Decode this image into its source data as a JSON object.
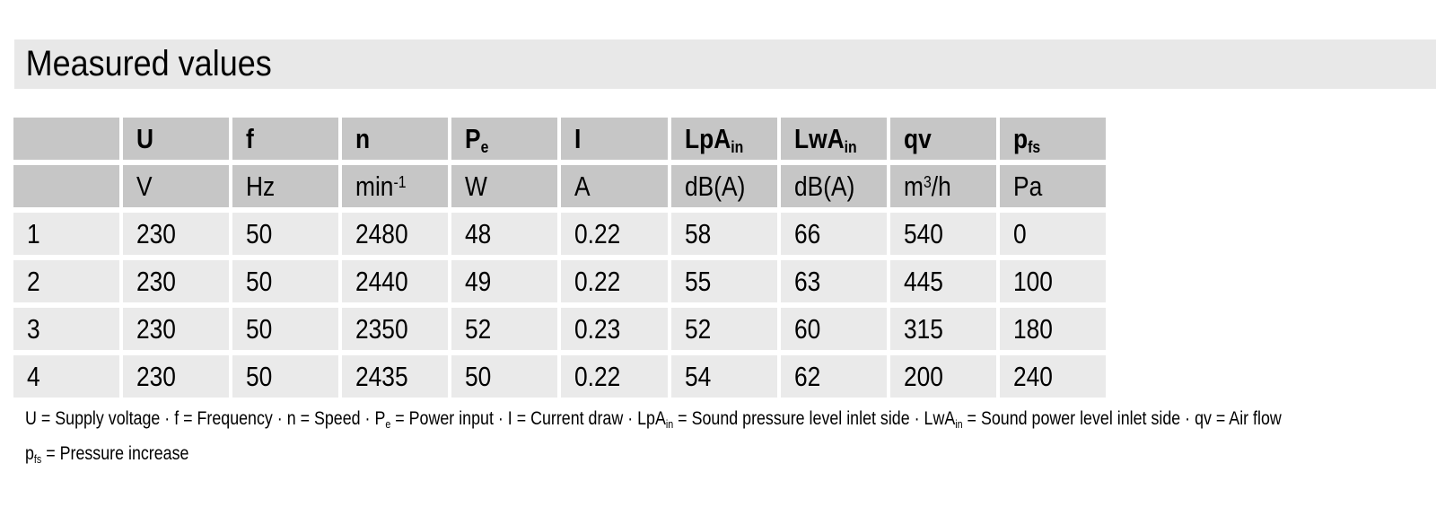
{
  "title": "Measured values",
  "colors": {
    "title_band_bg": "#e8e8e8",
    "header_cell_bg": "#c6c6c6",
    "data_cell_bg": "#eaeaea",
    "text": "#000000",
    "background": "#ffffff"
  },
  "table": {
    "headers": [
      {
        "main": "",
        "sub": ""
      },
      {
        "main": "U",
        "sub": ""
      },
      {
        "main": "f",
        "sub": ""
      },
      {
        "main": "n",
        "sub": ""
      },
      {
        "main": "P",
        "sub": "e"
      },
      {
        "main": "I",
        "sub": ""
      },
      {
        "main": "LpA",
        "sub": "in"
      },
      {
        "main": "LwA",
        "sub": "in"
      },
      {
        "main": "qv",
        "sub": ""
      },
      {
        "main": "p",
        "sub": "fs"
      }
    ],
    "units": [
      {
        "pre": ""
      },
      {
        "pre": "V"
      },
      {
        "pre": "Hz"
      },
      {
        "pre": "min",
        "sup": "-1"
      },
      {
        "pre": "W"
      },
      {
        "pre": "A"
      },
      {
        "pre": "dB(A)"
      },
      {
        "pre": "dB(A)"
      },
      {
        "pre": "m",
        "sup": "3",
        "post": "/h"
      },
      {
        "pre": "Pa"
      }
    ],
    "rows": [
      [
        "1",
        "230",
        "50",
        "2480",
        "48",
        "0.22",
        "58",
        "66",
        "540",
        "0"
      ],
      [
        "2",
        "230",
        "50",
        "2440",
        "49",
        "0.22",
        "55",
        "63",
        "445",
        "100"
      ],
      [
        "3",
        "230",
        "50",
        "2350",
        "52",
        "0.23",
        "52",
        "60",
        "315",
        "180"
      ],
      [
        "4",
        "230",
        "50",
        "2435",
        "50",
        "0.22",
        "54",
        "62",
        "200",
        "240"
      ]
    ]
  },
  "legend": {
    "line1": [
      {
        "t": "U = Supply voltage · f = Frequency · n = Speed · P",
        "s": "e"
      },
      {
        "t": " = Power input · I = Current draw · LpA",
        "s": "in"
      },
      {
        "t": " = Sound pressure level inlet side · LwA",
        "s": "in"
      },
      {
        "t": " = Sound power level inlet side · qv = Air flow",
        "s": ""
      }
    ],
    "line2": [
      {
        "t": "p",
        "s": "fs"
      },
      {
        "t": " = Pressure increase",
        "s": ""
      }
    ]
  }
}
